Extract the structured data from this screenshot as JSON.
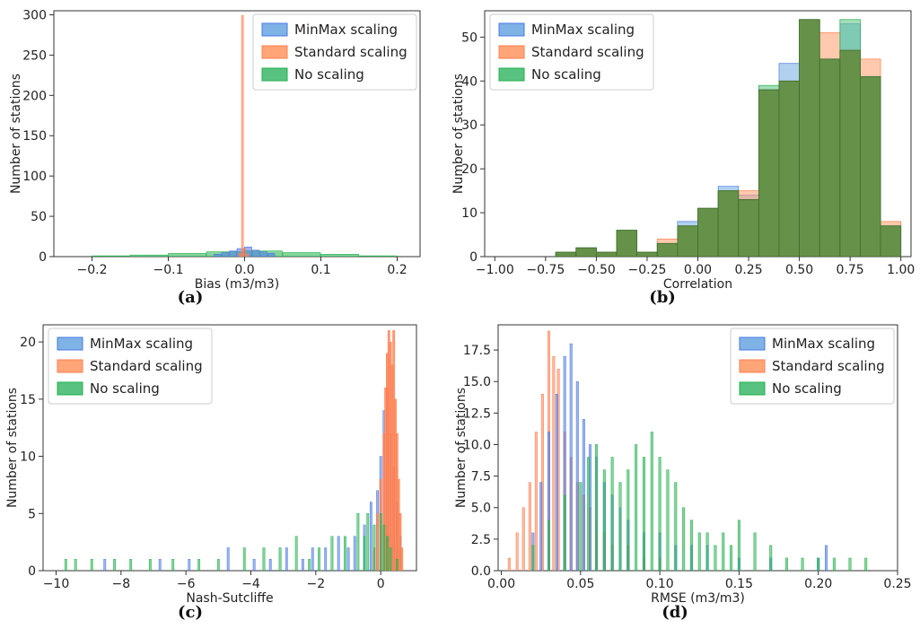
{
  "colors": {
    "minmax": "#4a78e6",
    "standard": "#ff7f50",
    "noscale": "#22b14c",
    "minmax_fill": "#7fb2e5",
    "standard_fill": "#ffa577",
    "noscale_fill": "#58c280",
    "overlap_fill": "#5e8a3c"
  },
  "chart_data": [
    {
      "panel": "a",
      "caption": "(a)",
      "type": "histogram",
      "xlabel": "Bias (m3/m3)",
      "ylabel": "Number of stations",
      "xlim": [
        -0.25,
        0.23
      ],
      "ylim": [
        0,
        305
      ],
      "xticks": [
        -0.2,
        -0.1,
        0.0,
        0.1,
        0.2
      ],
      "xtick_labels": [
        "−0.2",
        "−0.1",
        "0.0",
        "0.1",
        "0.2"
      ],
      "yticks": [
        0,
        50,
        100,
        150,
        200,
        250,
        300
      ],
      "ytick_labels": [
        "0",
        "50",
        "100",
        "150",
        "200",
        "250",
        "300"
      ],
      "legend": {
        "position": "top-right",
        "entries": [
          "MinMax scaling",
          "Standard scaling",
          "No scaling"
        ]
      },
      "series": [
        {
          "name": "MinMax scaling",
          "color_key": "minmax",
          "edges": [
            -0.04,
            -0.03,
            -0.02,
            -0.01,
            0.0,
            0.01,
            0.02,
            0.03,
            0.04
          ],
          "counts": [
            3,
            5,
            7,
            10,
            12,
            8,
            6,
            4
          ]
        },
        {
          "name": "Standard scaling",
          "color_key": "standard",
          "edges": [
            -0.008,
            -0.004,
            -0.001,
            0.002,
            0.006
          ],
          "counts": [
            4,
            299,
            10,
            3
          ]
        },
        {
          "name": "No scaling",
          "color_key": "noscale",
          "edges": [
            -0.2,
            -0.15,
            -0.1,
            -0.05,
            0.0,
            0.05,
            0.1,
            0.15,
            0.2
          ],
          "counts": [
            1,
            2,
            4,
            6,
            7,
            5,
            3,
            1
          ]
        }
      ]
    },
    {
      "panel": "b",
      "caption": "(b)",
      "type": "histogram",
      "xlabel": "Correlation",
      "ylabel": "Number of stations",
      "xlim": [
        -1.05,
        1.05
      ],
      "ylim": [
        0,
        56
      ],
      "xticks": [
        -1.0,
        -0.75,
        -0.5,
        -0.25,
        0.0,
        0.25,
        0.5,
        0.75,
        1.0
      ],
      "xtick_labels": [
        "−1.00",
        "−0.75",
        "−0.50",
        "−0.25",
        "0.00",
        "0.25",
        "0.50",
        "0.75",
        "1.00"
      ],
      "yticks": [
        0,
        10,
        20,
        30,
        40,
        50
      ],
      "ytick_labels": [
        "0",
        "10",
        "20",
        "30",
        "40",
        "50"
      ],
      "legend": {
        "position": "top-left",
        "entries": [
          "MinMax scaling",
          "Standard scaling",
          "No scaling"
        ]
      },
      "edges": [
        -0.7,
        -0.6,
        -0.5,
        -0.4,
        -0.3,
        -0.2,
        -0.1,
        0.0,
        0.1,
        0.2,
        0.3,
        0.4,
        0.5,
        0.6,
        0.7,
        0.8,
        0.9,
        1.0
      ],
      "series": [
        {
          "name": "MinMax scaling",
          "color_key": "minmax",
          "counts": [
            1,
            2,
            1,
            6,
            1,
            3,
            8,
            11,
            16,
            14,
            38,
            44,
            54,
            45,
            53,
            41,
            7
          ]
        },
        {
          "name": "Standard scaling",
          "color_key": "standard",
          "counts": [
            1,
            2,
            1,
            6,
            1,
            4,
            7,
            11,
            15,
            15,
            38,
            40,
            54,
            51,
            47,
            45,
            8
          ]
        },
        {
          "name": "No scaling",
          "color_key": "noscale",
          "counts": [
            1,
            2,
            1,
            6,
            1,
            3,
            7,
            11,
            15,
            13,
            39,
            40,
            54,
            45,
            54,
            41,
            7
          ]
        }
      ]
    },
    {
      "panel": "c",
      "caption": "(c)",
      "type": "histogram",
      "xlabel": "Nash-Sutcliffe",
      "ylabel": "Number of stations",
      "xlim": [
        -10.4,
        1.1
      ],
      "ylim": [
        0,
        21.5
      ],
      "xticks": [
        -10,
        -8,
        -6,
        -4,
        -2,
        0
      ],
      "xtick_labels": [
        "−10",
        "−8",
        "−6",
        "−4",
        "−2",
        "0"
      ],
      "yticks": [
        0,
        5,
        10,
        15,
        20
      ],
      "ytick_labels": [
        "0",
        "5",
        "10",
        "15",
        "20"
      ],
      "legend": {
        "position": "top-left",
        "entries": [
          "MinMax scaling",
          "Standard scaling",
          "No scaling"
        ]
      },
      "series": [
        {
          "name": "MinMax scaling",
          "color_key": "minmax",
          "bars": [
            [
              -8.5,
              1
            ],
            [
              -6.8,
              1
            ],
            [
              -5.9,
              1
            ],
            [
              -4.7,
              2
            ],
            [
              -3.9,
              1
            ],
            [
              -3.4,
              1
            ],
            [
              -2.9,
              2
            ],
            [
              -2.4,
              1
            ],
            [
              -2.1,
              2
            ],
            [
              -1.7,
              2
            ],
            [
              -1.3,
              3
            ],
            [
              -1.0,
              2
            ],
            [
              -0.8,
              3
            ],
            [
              -0.5,
              4
            ],
            [
              -0.3,
              6
            ],
            [
              -0.1,
              7
            ],
            [
              0.0,
              10
            ],
            [
              0.1,
              14
            ],
            [
              0.2,
              16
            ],
            [
              0.3,
              12
            ],
            [
              0.4,
              9
            ],
            [
              0.5,
              6
            ],
            [
              0.6,
              3
            ]
          ]
        },
        {
          "name": "Standard scaling",
          "color_key": "standard",
          "bars": [
            [
              -0.2,
              2
            ],
            [
              -0.1,
              5
            ],
            [
              0.0,
              8
            ],
            [
              0.1,
              12
            ],
            [
              0.15,
              16
            ],
            [
              0.2,
              19
            ],
            [
              0.25,
              21
            ],
            [
              0.3,
              20
            ],
            [
              0.35,
              18
            ],
            [
              0.4,
              21
            ],
            [
              0.45,
              15
            ],
            [
              0.5,
              12
            ],
            [
              0.55,
              8
            ],
            [
              0.6,
              5
            ],
            [
              0.65,
              2
            ]
          ]
        },
        {
          "name": "No scaling",
          "color_key": "noscale",
          "bars": [
            [
              -9.7,
              1
            ],
            [
              -9.4,
              1
            ],
            [
              -8.9,
              1
            ],
            [
              -8.2,
              1
            ],
            [
              -7.7,
              1
            ],
            [
              -7.1,
              1
            ],
            [
              -6.4,
              1
            ],
            [
              -5.6,
              1
            ],
            [
              -5.0,
              1
            ],
            [
              -4.2,
              2
            ],
            [
              -3.6,
              2
            ],
            [
              -3.1,
              2
            ],
            [
              -2.6,
              3
            ],
            [
              -2.2,
              1
            ],
            [
              -1.9,
              2
            ],
            [
              -1.5,
              3
            ],
            [
              -1.1,
              3
            ],
            [
              -0.7,
              5
            ],
            [
              -0.5,
              3
            ],
            [
              -0.4,
              5
            ],
            [
              -0.2,
              4
            ],
            [
              0.0,
              5
            ],
            [
              0.1,
              4
            ],
            [
              0.2,
              3
            ],
            [
              0.3,
              2
            ],
            [
              0.5,
              1
            ]
          ]
        }
      ]
    },
    {
      "panel": "d",
      "caption": "(d)",
      "type": "histogram",
      "xlabel": "RMSE (m3/m3)",
      "ylabel": "Number of stations",
      "xlim": [
        -0.002,
        0.25
      ],
      "ylim": [
        0,
        19.5
      ],
      "xticks": [
        0.0,
        0.05,
        0.1,
        0.15,
        0.2,
        0.25
      ],
      "xtick_labels": [
        "0.00",
        "0.05",
        "0.10",
        "0.15",
        "0.20",
        "0.25"
      ],
      "yticks": [
        0,
        2.5,
        5.0,
        7.5,
        10.0,
        12.5,
        15.0,
        17.5
      ],
      "ytick_labels": [
        "0.0",
        "2.5",
        "5.0",
        "7.5",
        "10.0",
        "12.5",
        "15.0",
        "17.5"
      ],
      "legend": {
        "position": "top-right",
        "entries": [
          "MinMax scaling",
          "Standard scaling",
          "No scaling"
        ]
      },
      "series": [
        {
          "name": "MinMax scaling",
          "color_key": "minmax",
          "bars": [
            [
              0.02,
              3
            ],
            [
              0.025,
              7
            ],
            [
              0.03,
              11
            ],
            [
              0.035,
              14
            ],
            [
              0.04,
              17
            ],
            [
              0.044,
              18
            ],
            [
              0.048,
              15
            ],
            [
              0.052,
              12
            ],
            [
              0.056,
              10
            ],
            [
              0.06,
              9
            ],
            [
              0.065,
              7
            ],
            [
              0.07,
              6
            ],
            [
              0.075,
              5
            ],
            [
              0.08,
              4
            ],
            [
              0.09,
              3
            ],
            [
              0.1,
              3
            ],
            [
              0.11,
              2
            ],
            [
              0.12,
              2
            ],
            [
              0.13,
              2
            ],
            [
              0.15,
              1
            ],
            [
              0.17,
              1
            ],
            [
              0.2,
              1
            ],
            [
              0.205,
              2
            ]
          ]
        },
        {
          "name": "Standard scaling",
          "color_key": "standard",
          "bars": [
            [
              0.005,
              1
            ],
            [
              0.01,
              3
            ],
            [
              0.014,
              5
            ],
            [
              0.018,
              7
            ],
            [
              0.022,
              11
            ],
            [
              0.026,
              14
            ],
            [
              0.03,
              19
            ],
            [
              0.033,
              17
            ],
            [
              0.036,
              16
            ],
            [
              0.04,
              11
            ],
            [
              0.044,
              9
            ],
            [
              0.048,
              7
            ],
            [
              0.052,
              6
            ],
            [
              0.056,
              5
            ],
            [
              0.06,
              4
            ],
            [
              0.065,
              3
            ],
            [
              0.07,
              2
            ],
            [
              0.08,
              2
            ],
            [
              0.09,
              1
            ],
            [
              0.1,
              1
            ]
          ]
        },
        {
          "name": "No scaling",
          "color_key": "noscale",
          "bars": [
            [
              0.02,
              2
            ],
            [
              0.03,
              4
            ],
            [
              0.04,
              6
            ],
            [
              0.05,
              7
            ],
            [
              0.055,
              9
            ],
            [
              0.06,
              10
            ],
            [
              0.065,
              8
            ],
            [
              0.07,
              9
            ],
            [
              0.075,
              7
            ],
            [
              0.08,
              8
            ],
            [
              0.085,
              10
            ],
            [
              0.09,
              9
            ],
            [
              0.095,
              11
            ],
            [
              0.1,
              9
            ],
            [
              0.105,
              8
            ],
            [
              0.11,
              7
            ],
            [
              0.115,
              5
            ],
            [
              0.12,
              4
            ],
            [
              0.125,
              3
            ],
            [
              0.13,
              3
            ],
            [
              0.135,
              2
            ],
            [
              0.14,
              3
            ],
            [
              0.145,
              2
            ],
            [
              0.15,
              4
            ],
            [
              0.16,
              3
            ],
            [
              0.17,
              2
            ],
            [
              0.18,
              1
            ],
            [
              0.19,
              1
            ],
            [
              0.2,
              1
            ],
            [
              0.21,
              1
            ],
            [
              0.22,
              1
            ],
            [
              0.23,
              1
            ]
          ]
        }
      ]
    }
  ]
}
